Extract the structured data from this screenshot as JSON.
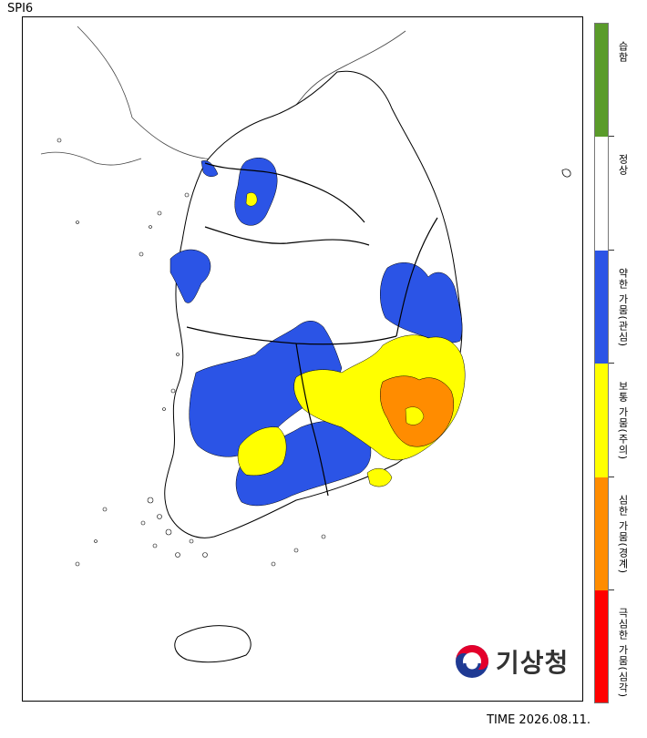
{
  "title": "SPI6",
  "timestamp": "TIME 2026.08.11.",
  "logo": {
    "text": "기상청",
    "icon": "kma-taegeuk-logo-icon"
  },
  "legend": [
    {
      "label": "습함",
      "color": "#5a9b2a"
    },
    {
      "label": "정상",
      "color": "#ffffff"
    },
    {
      "label": "약한 가뭄(관심)",
      "color": "#2b54e6"
    },
    {
      "label": "보통 가뭄(주의)",
      "color": "#ffff00"
    },
    {
      "label": "심한 가뭄(경계)",
      "color": "#ff8c00"
    },
    {
      "label": "극심한 가뭄(심각)",
      "color": "#ff0000"
    }
  ],
  "colors": {
    "normal": "#ffffff",
    "attention": "#2b54e6",
    "caution": "#ffff00",
    "warning": "#ff8c00",
    "border": "#000000"
  }
}
